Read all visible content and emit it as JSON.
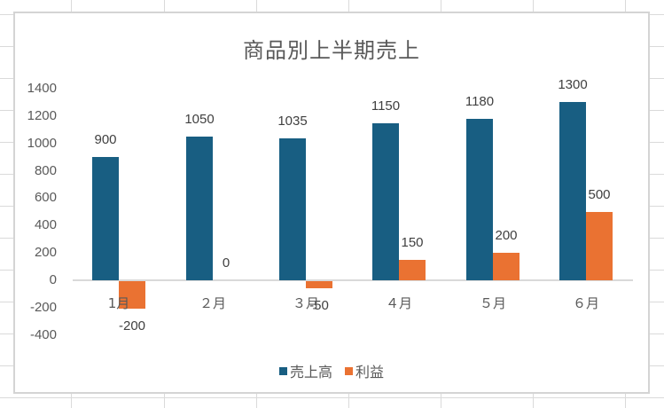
{
  "chart_data": {
    "type": "bar",
    "title": "商品別上半期売上",
    "categories": [
      "1月",
      "２月",
      "３月",
      "４月",
      "５月",
      "６月"
    ],
    "series": [
      {
        "name": "売上高",
        "color": "#185e82",
        "values": [
          900,
          1050,
          1035,
          1150,
          1180,
          1300
        ]
      },
      {
        "name": "利益",
        "color": "#ea7232",
        "values": [
          -200,
          0,
          -50,
          150,
          200,
          500
        ]
      }
    ],
    "data_labels": [
      [
        "900",
        "1050",
        "1035",
        "1150",
        "1180",
        "1300"
      ],
      [
        "-200",
        "0",
        "-50",
        "150",
        "200",
        "500"
      ]
    ],
    "xlabel": "",
    "ylabel": "",
    "ylim": [
      -400,
      1400
    ],
    "yticks": [
      "1400",
      "1200",
      "1000",
      "800",
      "600",
      "400",
      "200",
      "0",
      "-200",
      "-400"
    ],
    "grid": false,
    "legend_position": "bottom"
  },
  "chart": {
    "title": "商品別上半期売上",
    "legend": [
      {
        "label": "売上高",
        "color": "#185e82"
      },
      {
        "label": "利益",
        "color": "#ea7232"
      }
    ]
  }
}
